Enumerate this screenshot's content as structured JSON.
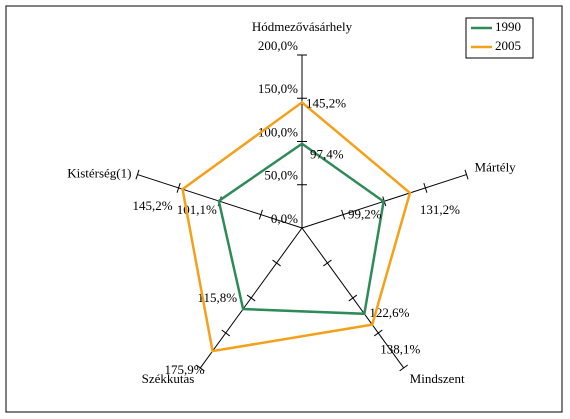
{
  "chart_data": {
    "type": "radar",
    "categories": [
      "Hódmezővásárhely",
      "Mártély",
      "Mindszent",
      "Székkutas",
      "Kistérség(1)"
    ],
    "rlim": [
      0,
      200
    ],
    "rticks": [
      {
        "value": 0,
        "label": "0,0%"
      },
      {
        "value": 50,
        "label": "50,0%"
      },
      {
        "value": 100,
        "label": "100,0%"
      },
      {
        "value": 150,
        "label": "150,0%"
      },
      {
        "value": 200,
        "label": "200,0%"
      }
    ],
    "legend": "top-right",
    "series": [
      {
        "name": "1990",
        "color": "#2e8b57",
        "values": [
          97.4,
          99.2,
          122.6,
          115.8,
          101.1
        ],
        "value_labels": [
          "97,4%",
          "99,2%",
          "122,6%",
          "115,8%",
          "101,1%"
        ]
      },
      {
        "name": "2005",
        "color": "#f5a01a",
        "values": [
          145.2,
          131.2,
          138.1,
          175.9,
          145.2
        ],
        "value_labels": [
          "145,2%",
          "131,2%",
          "138,1%",
          "175,9%",
          "145,2%"
        ]
      }
    ]
  }
}
